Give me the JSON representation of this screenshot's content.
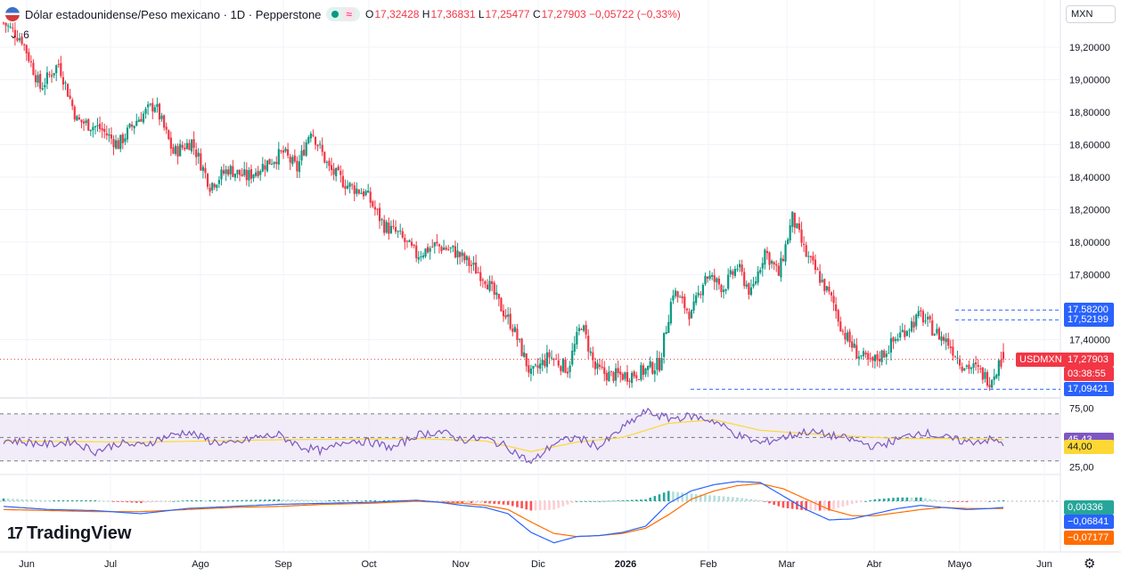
{
  "header": {
    "title": "Dólar estadounidense/Peso mexicano · 1D · Pepperstone",
    "flag_icon": "us-mx-flag-icon",
    "ohlc": {
      "o_label": "O",
      "o": "17,32428",
      "h_label": "H",
      "h": "17,36831",
      "l_label": "L",
      "l": "17,25477",
      "c_label": "C",
      "c": "17,27903",
      "change": "−0,05722 (−0,33%)"
    },
    "collapse_count": "6"
  },
  "currency_button": "MXN",
  "brand": "TradingView",
  "colors": {
    "up": "#089981",
    "down": "#f23645",
    "rsi": "#7e57c2",
    "rsi_ma": "#fdd835",
    "macd": "#2962ff",
    "signal": "#ff6d00",
    "rsi_band": "#ede7f6"
  },
  "chart_data": [
    {
      "type": "candlestick",
      "title": "USDMXN",
      "y_axis": [
        "19,20000",
        "19,00000",
        "18,80000",
        "18,60000",
        "18,40000",
        "18,20000",
        "18,00000",
        "17,80000",
        "17,40000"
      ],
      "x_axis": [
        "Jun",
        "Jul",
        "Ago",
        "Sep",
        "Oct",
        "Nov",
        "Dic",
        "2026",
        "Feb",
        "Mar",
        "Abr",
        "Mayo",
        "Jun"
      ],
      "ylim": [
        17.06,
        19.32
      ],
      "path": [
        [
          0,
          19.35
        ],
        [
          8,
          19.25
        ],
        [
          16,
          18.95
        ],
        [
          24,
          19.1
        ],
        [
          32,
          18.75
        ],
        [
          42,
          18.7
        ],
        [
          50,
          18.6
        ],
        [
          58,
          18.75
        ],
        [
          66,
          18.85
        ],
        [
          74,
          18.55
        ],
        [
          82,
          18.62
        ],
        [
          90,
          18.35
        ],
        [
          98,
          18.45
        ],
        [
          106,
          18.4
        ],
        [
          114,
          18.48
        ],
        [
          122,
          18.55
        ],
        [
          128,
          18.45
        ],
        [
          134,
          18.7
        ],
        [
          142,
          18.45
        ],
        [
          150,
          18.35
        ],
        [
          158,
          18.3
        ],
        [
          166,
          18.1
        ],
        [
          172,
          18.05
        ],
        [
          180,
          17.92
        ],
        [
          188,
          17.98
        ],
        [
          196,
          17.95
        ],
        [
          202,
          17.88
        ],
        [
          210,
          17.78
        ],
        [
          216,
          17.62
        ],
        [
          222,
          17.48
        ],
        [
          230,
          17.18
        ],
        [
          238,
          17.3
        ],
        [
          246,
          17.22
        ],
        [
          252,
          17.5
        ],
        [
          258,
          17.22
        ],
        [
          264,
          17.18
        ],
        [
          272,
          17.18
        ],
        [
          278,
          17.2
        ],
        [
          286,
          17.25
        ],
        [
          292,
          17.7
        ],
        [
          300,
          17.55
        ],
        [
          306,
          17.8
        ],
        [
          314,
          17.72
        ],
        [
          320,
          17.85
        ],
        [
          326,
          17.68
        ],
        [
          332,
          17.95
        ],
        [
          338,
          17.8
        ],
        [
          344,
          18.15
        ],
        [
          350,
          17.92
        ],
        [
          356,
          17.78
        ],
        [
          362,
          17.62
        ],
        [
          366,
          17.45
        ],
        [
          372,
          17.32
        ],
        [
          378,
          17.25
        ],
        [
          384,
          17.32
        ],
        [
          390,
          17.42
        ],
        [
          396,
          17.5
        ],
        [
          400,
          17.55
        ],
        [
          406,
          17.45
        ],
        [
          412,
          17.38
        ],
        [
          418,
          17.25
        ],
        [
          424,
          17.22
        ],
        [
          430,
          17.15
        ],
        [
          436,
          17.3
        ]
      ],
      "current_price": "17,27903",
      "current_price_value": 17.27903,
      "countdown": "03:38:55",
      "symbol_tag": "USDMXN",
      "high_line": {
        "label": "17,58200",
        "value": 17.582
      },
      "mid_line": {
        "label": "17,52199",
        "value": 17.522
      },
      "low_line": {
        "label": "17,09421",
        "value": 17.09421
      }
    },
    {
      "type": "line",
      "title": "RSI",
      "y_axis": [
        "75,00",
        "50,00",
        "25,00"
      ],
      "ylim": [
        20,
        82
      ],
      "band": [
        30,
        70
      ],
      "rsi_path": [
        [
          0,
          48
        ],
        [
          10,
          46
        ],
        [
          20,
          44
        ],
        [
          30,
          47
        ],
        [
          40,
          38
        ],
        [
          50,
          45
        ],
        [
          60,
          43
        ],
        [
          70,
          50
        ],
        [
          80,
          55
        ],
        [
          90,
          47
        ],
        [
          100,
          44
        ],
        [
          110,
          50
        ],
        [
          120,
          52
        ],
        [
          130,
          42
        ],
        [
          140,
          38
        ],
        [
          150,
          48
        ],
        [
          160,
          46
        ],
        [
          170,
          41
        ],
        [
          180,
          52
        ],
        [
          190,
          55
        ],
        [
          200,
          48
        ],
        [
          210,
          49
        ],
        [
          220,
          42
        ],
        [
          230,
          28
        ],
        [
          240,
          45
        ],
        [
          250,
          50
        ],
        [
          260,
          42
        ],
        [
          270,
          58
        ],
        [
          280,
          72
        ],
        [
          290,
          66
        ],
        [
          300,
          68
        ],
        [
          310,
          64
        ],
        [
          320,
          52
        ],
        [
          330,
          45
        ],
        [
          340,
          50
        ],
        [
          350,
          55
        ],
        [
          360,
          52
        ],
        [
          370,
          48
        ],
        [
          380,
          42
        ],
        [
          390,
          48
        ],
        [
          400,
          55
        ],
        [
          410,
          50
        ],
        [
          420,
          46
        ],
        [
          430,
          48
        ],
        [
          436,
          45
        ]
      ],
      "rsi_value": "45,43",
      "ma_path": [
        [
          0,
          47
        ],
        [
          60,
          46
        ],
        [
          120,
          48
        ],
        [
          180,
          49
        ],
        [
          210,
          47
        ],
        [
          230,
          38
        ],
        [
          250,
          46
        ],
        [
          270,
          50
        ],
        [
          290,
          62
        ],
        [
          310,
          65
        ],
        [
          330,
          56
        ],
        [
          360,
          52
        ],
        [
          390,
          49
        ],
        [
          420,
          49
        ],
        [
          436,
          48
        ]
      ],
      "ma_value": "44,00"
    },
    {
      "type": "line",
      "title": "MACD",
      "ylim": [
        -0.48,
        0.24
      ],
      "macd_path": [
        [
          0,
          -0.05
        ],
        [
          20,
          -0.08
        ],
        [
          40,
          -0.09
        ],
        [
          60,
          -0.12
        ],
        [
          80,
          -0.07
        ],
        [
          100,
          -0.05
        ],
        [
          120,
          -0.03
        ],
        [
          140,
          -0.02
        ],
        [
          160,
          -0.01
        ],
        [
          180,
          0.01
        ],
        [
          190,
          -0.01
        ],
        [
          200,
          -0.04
        ],
        [
          210,
          -0.06
        ],
        [
          220,
          -0.12
        ],
        [
          230,
          -0.3
        ],
        [
          240,
          -0.4
        ],
        [
          250,
          -0.34
        ],
        [
          260,
          -0.33
        ],
        [
          270,
          -0.3
        ],
        [
          280,
          -0.24
        ],
        [
          290,
          -0.02
        ],
        [
          300,
          0.1
        ],
        [
          310,
          0.16
        ],
        [
          320,
          0.19
        ],
        [
          330,
          0.18
        ],
        [
          340,
          0.05
        ],
        [
          350,
          -0.08
        ],
        [
          360,
          -0.18
        ],
        [
          370,
          -0.17
        ],
        [
          380,
          -0.12
        ],
        [
          390,
          -0.07
        ],
        [
          400,
          -0.04
        ],
        [
          410,
          -0.06
        ],
        [
          420,
          -0.08
        ],
        [
          430,
          -0.07
        ],
        [
          436,
          -0.06
        ]
      ],
      "signal_path": [
        [
          0,
          -0.08
        ],
        [
          20,
          -0.09
        ],
        [
          40,
          -0.1
        ],
        [
          60,
          -0.1
        ],
        [
          80,
          -0.08
        ],
        [
          100,
          -0.06
        ],
        [
          120,
          -0.05
        ],
        [
          140,
          -0.03
        ],
        [
          160,
          -0.02
        ],
        [
          180,
          0.0
        ],
        [
          200,
          -0.02
        ],
        [
          210,
          -0.04
        ],
        [
          220,
          -0.08
        ],
        [
          230,
          -0.2
        ],
        [
          240,
          -0.31
        ],
        [
          250,
          -0.34
        ],
        [
          260,
          -0.33
        ],
        [
          270,
          -0.31
        ],
        [
          280,
          -0.26
        ],
        [
          290,
          -0.13
        ],
        [
          300,
          0.02
        ],
        [
          310,
          0.1
        ],
        [
          320,
          0.15
        ],
        [
          330,
          0.17
        ],
        [
          340,
          0.12
        ],
        [
          350,
          0.02
        ],
        [
          360,
          -0.08
        ],
        [
          370,
          -0.14
        ],
        [
          380,
          -0.14
        ],
        [
          390,
          -0.11
        ],
        [
          400,
          -0.08
        ],
        [
          410,
          -0.06
        ],
        [
          420,
          -0.07
        ],
        [
          430,
          -0.07
        ],
        [
          436,
          -0.07
        ]
      ],
      "hist_value": "0,00336",
      "macd_value": "−0,06841",
      "signal_value": "−0,07177"
    }
  ]
}
